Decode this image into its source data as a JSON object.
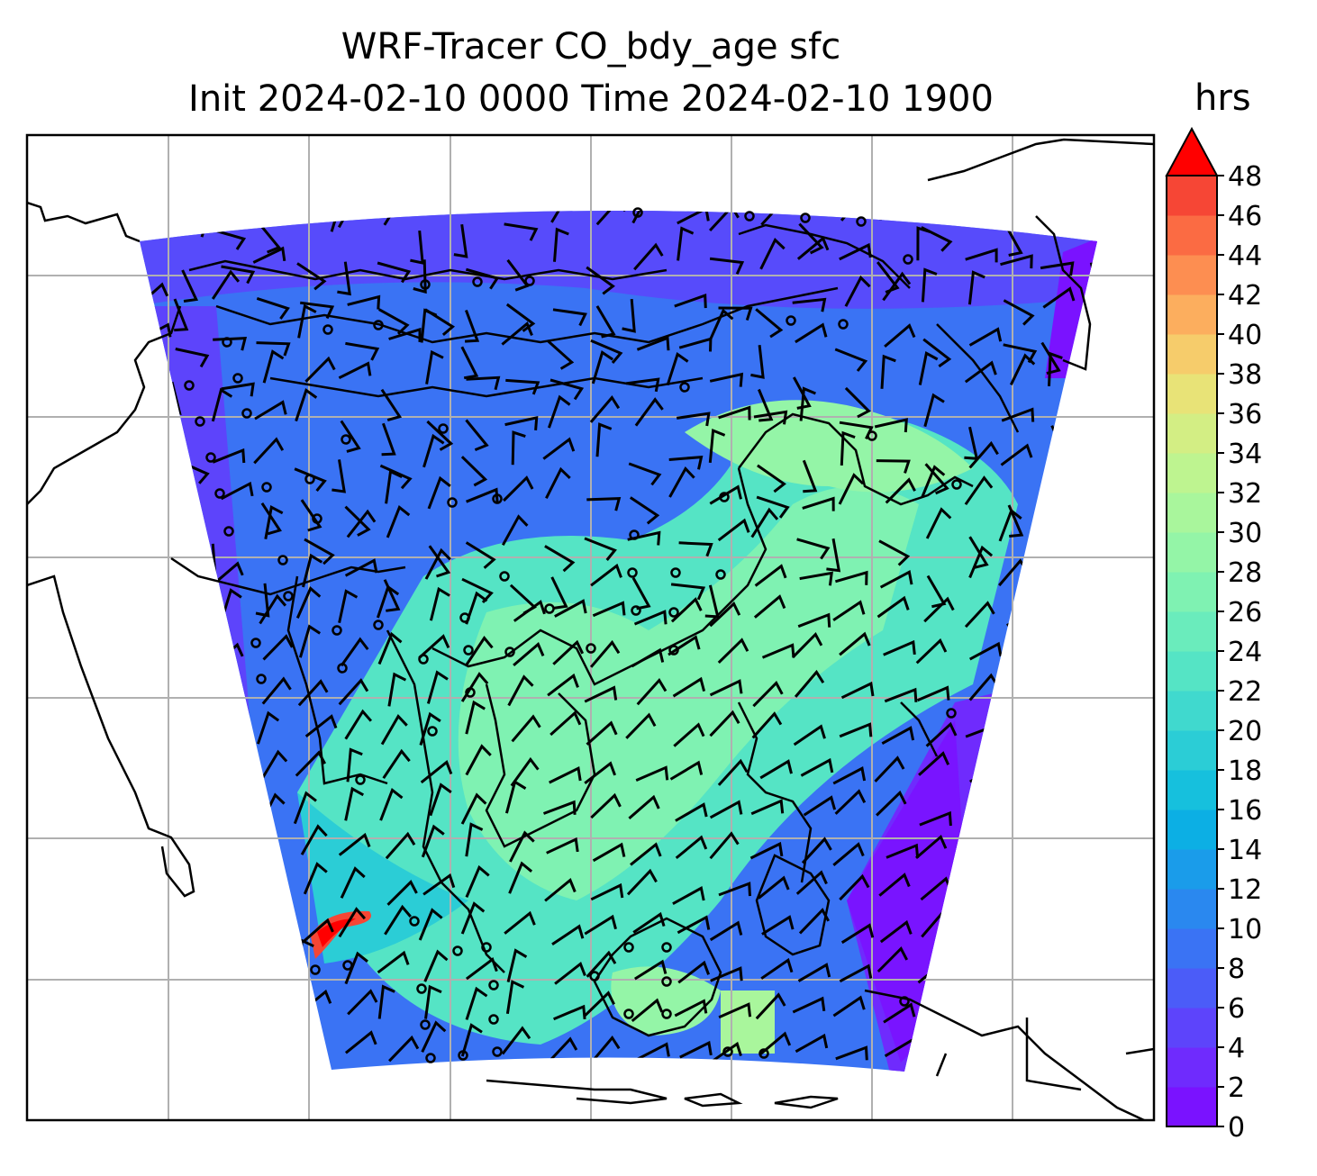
{
  "map": {
    "title_line1": "WRF-Tracer CO_bdy_age sfc",
    "title_line2": "Init 2024-02-10 0000 Time 2024-02-10 1900",
    "colorbar": {
      "unit": "hrs",
      "ticks": [
        "0",
        "2",
        "4",
        "6",
        "8",
        "10",
        "12",
        "14",
        "16",
        "18",
        "20",
        "22",
        "24",
        "26",
        "28",
        "30",
        "32",
        "34",
        "36",
        "38",
        "40",
        "42",
        "44",
        "46",
        "48"
      ],
      "extend": "max",
      "colors": [
        "#7a12ff",
        "#6f2bfd",
        "#5d44fb",
        "#4b5cf8",
        "#3a73f4",
        "#2a88ef",
        "#1a9cea",
        "#0cafe4",
        "#16c0dd",
        "#2bcdd6",
        "#40d9ce",
        "#55e4c5",
        "#6aecbc",
        "#7ff2b2",
        "#94f5a7",
        "#a9f69c",
        "#bef490",
        "#d3ee84",
        "#e8e377",
        "#f6cc6b",
        "#fcae5e",
        "#fd8e51",
        "#fb6b43",
        "#f64635",
        "#ef2126"
      ],
      "over_color": "#ff0000"
    },
    "colors": {
      "coastline": "#000000",
      "gridline": "#b0b0b0",
      "barb": "#000000"
    },
    "field_description_colors": {
      "low": "#7a12ff",
      "mid": "#3a73f4",
      "high": "#7ff2b2",
      "hotspot": "#f64635"
    }
  }
}
